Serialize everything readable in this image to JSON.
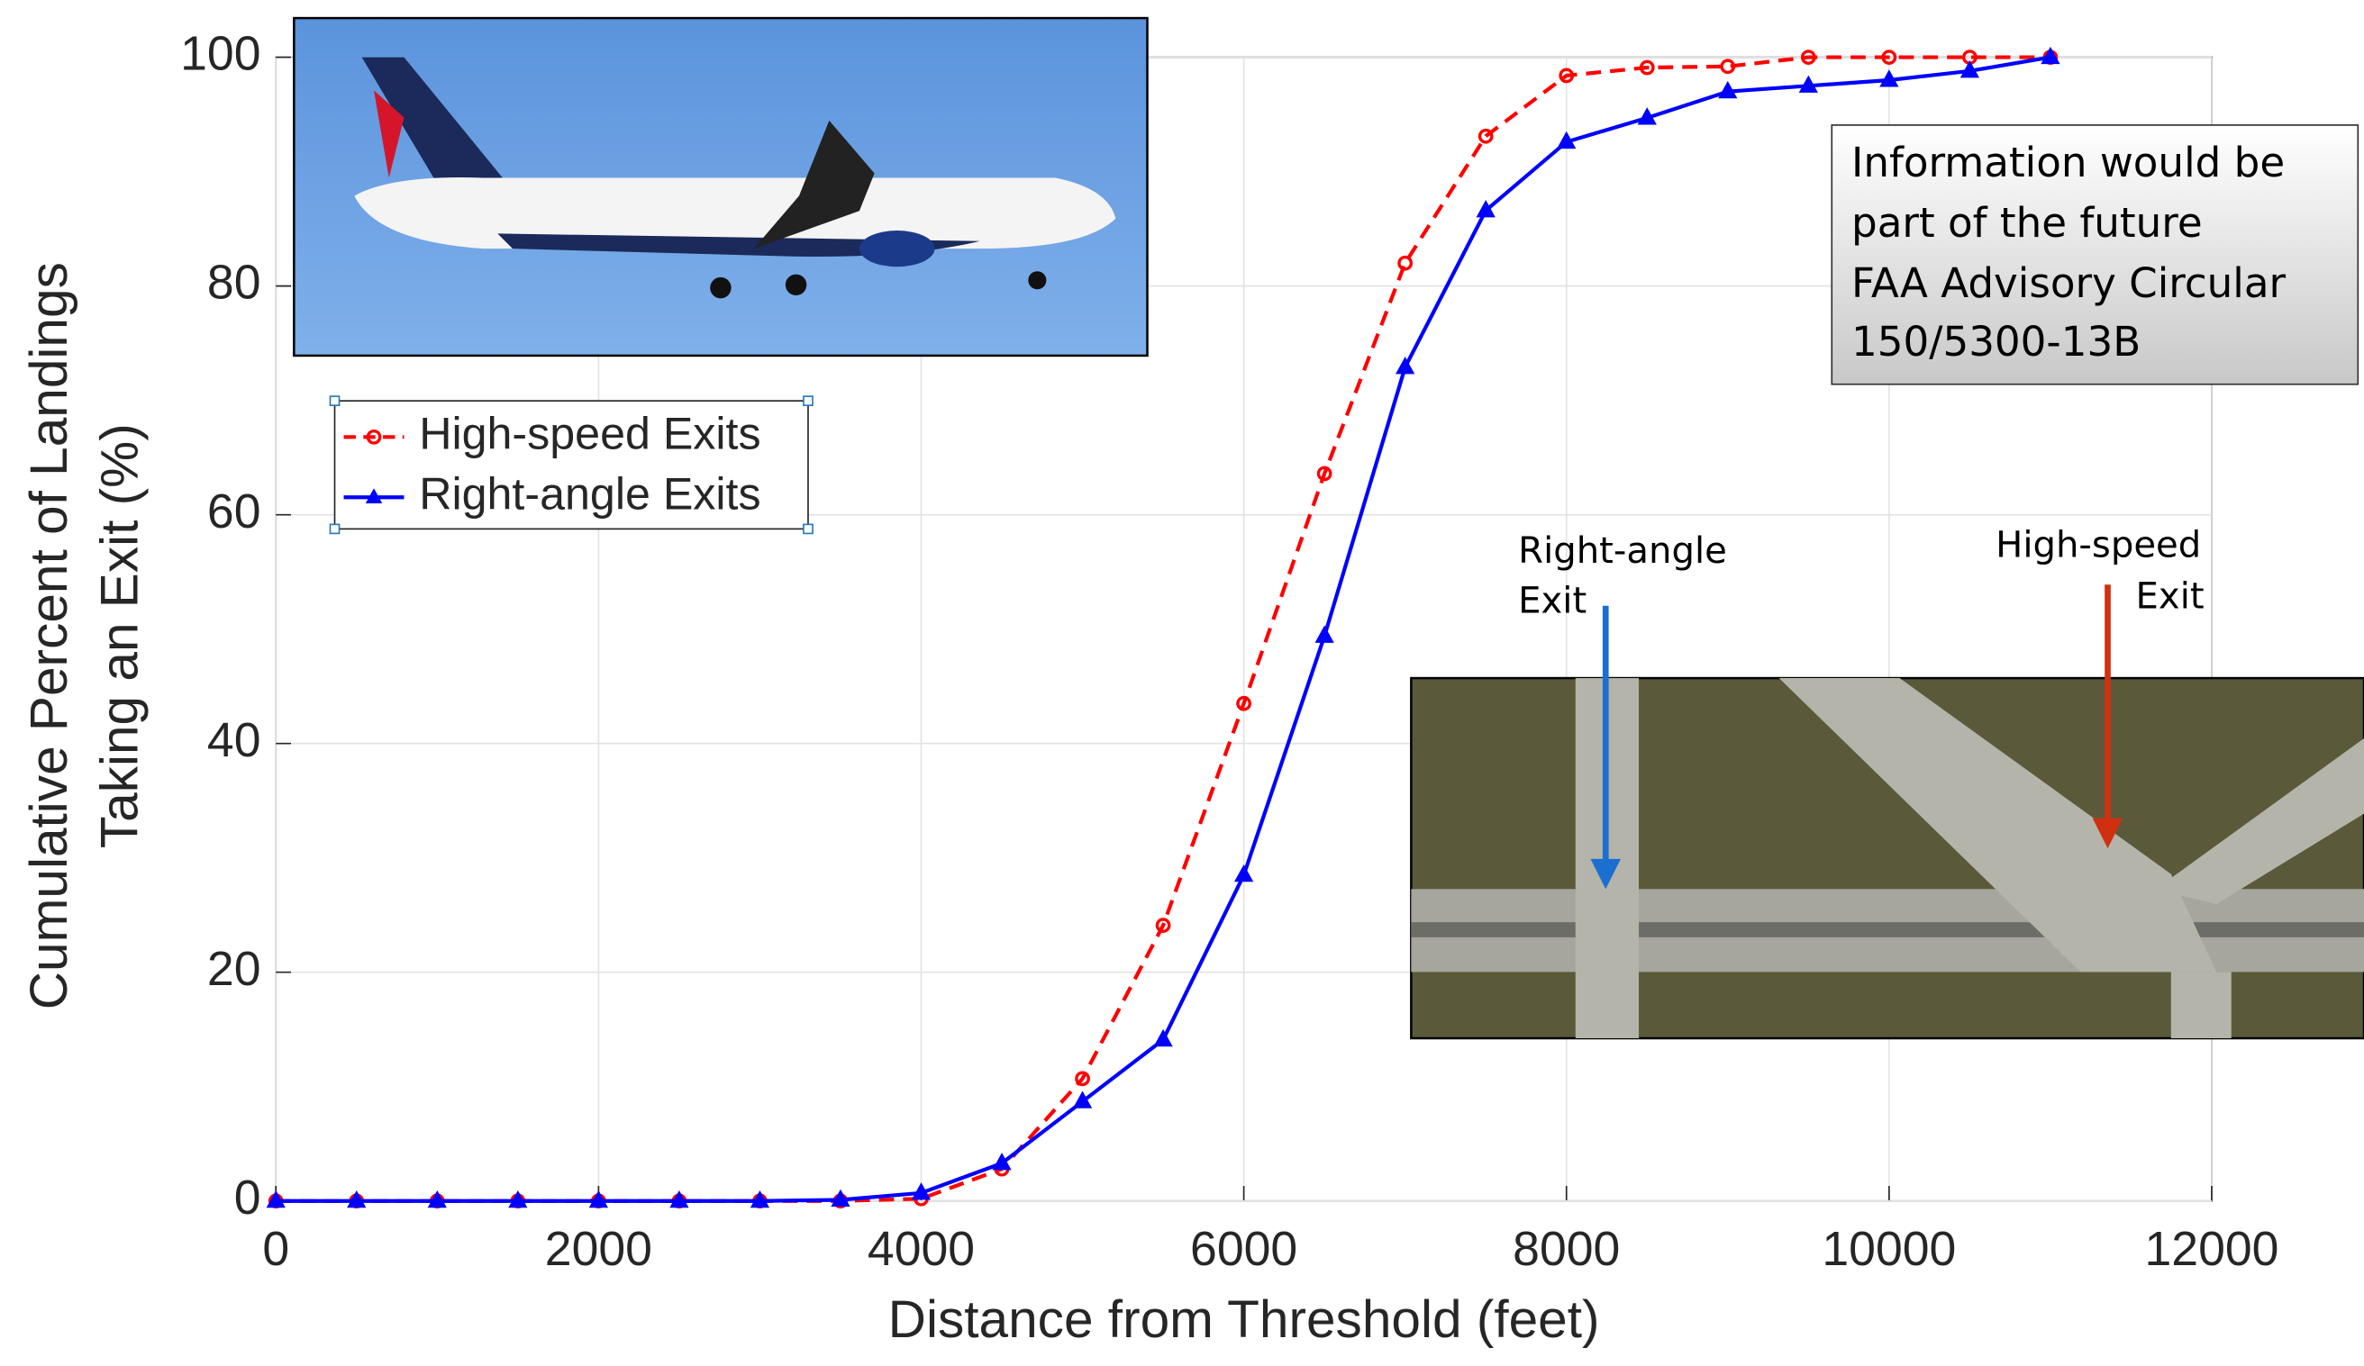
{
  "chart_data": {
    "type": "line",
    "xlabel": "Distance from Threshold (feet)",
    "ylabel": [
      "Cumulative Percent of Landings",
      "Taking an Exit (%)"
    ],
    "x": [
      0,
      500,
      1000,
      1500,
      2000,
      2500,
      3000,
      3500,
      4000,
      4500,
      5000,
      5500,
      6000,
      6500,
      7000,
      7500,
      8000,
      8500,
      9000,
      9500,
      10000,
      10500,
      11000
    ],
    "series": [
      {
        "name": "High-speed Exits",
        "color": "#ff0000",
        "values": [
          0,
          0,
          0,
          0,
          0,
          0,
          0,
          0,
          0.2,
          2.8,
          10.7,
          24.1,
          43.5,
          63.6,
          82,
          93.1,
          98.4,
          99.1,
          99.2,
          100,
          100,
          100,
          100
        ]
      },
      {
        "name": "Right-angle Exits",
        "color": "#0000ff",
        "values": [
          0,
          0,
          0,
          0,
          0,
          0,
          0,
          0.1,
          0.7,
          3.3,
          8.7,
          14.1,
          28.5,
          49.4,
          72.9,
          86.6,
          92.6,
          94.7,
          97,
          97.5,
          98,
          98.8,
          100
        ]
      }
    ],
    "xlim": [
      0,
      12000
    ],
    "xticks": [
      0,
      2000,
      4000,
      6000,
      8000,
      10000,
      12000
    ],
    "ylim": [
      0,
      100
    ],
    "yticks": [
      0,
      20,
      40,
      60,
      80,
      100
    ],
    "grid": true,
    "legend": "upper left",
    "annotations": [
      {
        "lines": [
          "Information would be",
          "part of the future",
          "FAA Advisory Circular",
          "150/5300-13B"
        ]
      },
      {
        "lines": [
          "Right-angle",
          "Exit"
        ]
      },
      {
        "lines": [
          "High-speed",
          "Exit"
        ]
      }
    ]
  }
}
